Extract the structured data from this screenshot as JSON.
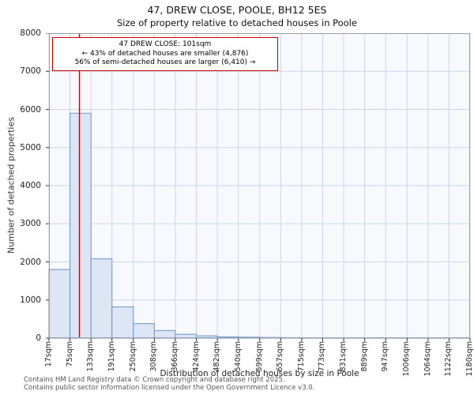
{
  "chart_data": {
    "type": "bar",
    "title": "47, DREW CLOSE, POOLE, BH12 5ES",
    "subtitle": "Size of property relative to detached houses in Poole",
    "xlabel": "Distribution of detached houses by size in Poole",
    "ylabel": "Number of detached properties",
    "ylim": [
      0,
      8000
    ],
    "y_ticks": [
      0,
      1000,
      2000,
      3000,
      4000,
      5000,
      6000,
      7000,
      8000
    ],
    "bin_edges_sqm": [
      17,
      75,
      133,
      191,
      250,
      308,
      366,
      424,
      482,
      540,
      599,
      657,
      715,
      773,
      831,
      889,
      947,
      1006,
      1064,
      1122,
      1180
    ],
    "x_tick_labels": [
      "17sqm",
      "75sqm",
      "133sqm",
      "191sqm",
      "250sqm",
      "308sqm",
      "366sqm",
      "424sqm",
      "482sqm",
      "540sqm",
      "599sqm",
      "657sqm",
      "715sqm",
      "773sqm",
      "831sqm",
      "889sqm",
      "947sqm",
      "1006sqm",
      "1064sqm",
      "1122sqm",
      "1180sqm"
    ],
    "values": [
      1800,
      5900,
      2080,
      820,
      380,
      200,
      100,
      60,
      35,
      25,
      18,
      12,
      8,
      5,
      4,
      3,
      2,
      2,
      1,
      1
    ],
    "marker_value_sqm": 101,
    "grid": true,
    "legend": "none",
    "colors": {
      "bar_fill": "#dce6f5",
      "bar_border": "#6c95c8",
      "marker_line": "#cc0000",
      "grid_line": "#ccd6e8",
      "plot_background": "#f7f9fd",
      "plot_border": "#9aa0a6",
      "tick": "#333333"
    }
  },
  "annotation": {
    "line1": "47 DREW CLOSE: 101sqm",
    "line2": "← 43% of detached houses are smaller (4,876)",
    "line3": "56% of semi-detached houses are larger (6,410) →",
    "border_color": "#cc0000"
  },
  "footer": {
    "line1": "Contains HM Land Registry data © Crown copyright and database right 2025.",
    "line2": "Contains public sector information licensed under the Open Government Licence v3.0."
  }
}
